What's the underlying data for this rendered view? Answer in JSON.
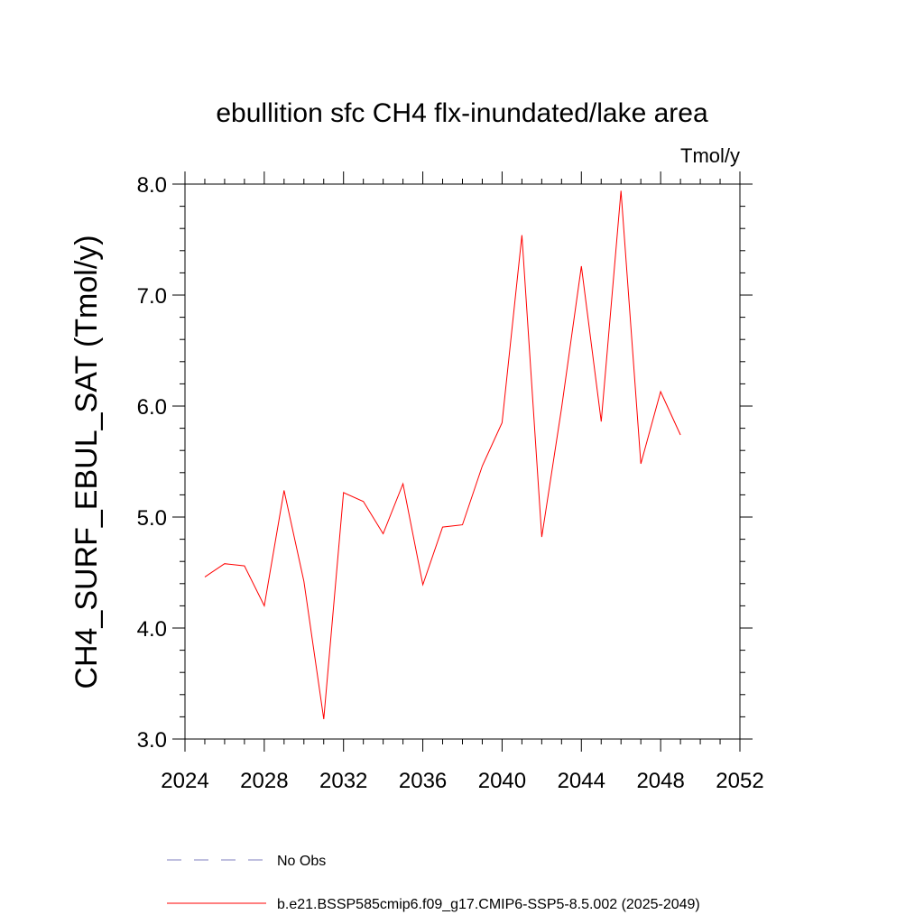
{
  "chart_data": {
    "type": "line",
    "title": "ebullition sfc CH4 flx-inundated/lake area",
    "units": "Tmol/y",
    "xlabel": "",
    "ylabel": "CH4_SURF_EBUL_SAT  (Tmol/y)",
    "xlim": [
      2024,
      2052
    ],
    "ylim": [
      3.0,
      8.0
    ],
    "x_ticks": [
      "2024",
      "2028",
      "2032",
      "2036",
      "2040",
      "2044",
      "2048",
      "2052"
    ],
    "y_ticks": [
      "3.0",
      "4.0",
      "5.0",
      "6.0",
      "7.0",
      "8.0"
    ],
    "series": [
      {
        "name": "b.e21.BSSP585cmip6.f09_g17.CMIP6-SSP5-8.5.002 (2025-2049)",
        "color": "#ff0000",
        "x": [
          2025,
          2026,
          2027,
          2028,
          2029,
          2030,
          2031,
          2032,
          2033,
          2034,
          2035,
          2036,
          2037,
          2038,
          2039,
          2040,
          2041,
          2042,
          2043,
          2044,
          2045,
          2046,
          2047,
          2048,
          2049
        ],
        "y": [
          4.46,
          4.58,
          4.56,
          4.2,
          5.24,
          4.42,
          3.18,
          5.22,
          5.14,
          4.85,
          5.3,
          4.39,
          4.91,
          4.93,
          5.46,
          5.85,
          7.54,
          4.82,
          5.98,
          7.26,
          5.86,
          7.94,
          5.48,
          6.13,
          5.74
        ]
      }
    ],
    "legend": [
      {
        "label": "No Obs",
        "color": "#7f7fbf",
        "style": "dashed"
      },
      {
        "label": "b.e21.BSSP585cmip6.f09_g17.CMIP6-SSP5-8.5.002 (2025-2049)",
        "color": "#ff0000",
        "style": "solid"
      }
    ],
    "legend_placement": "bottom",
    "grid": false
  }
}
